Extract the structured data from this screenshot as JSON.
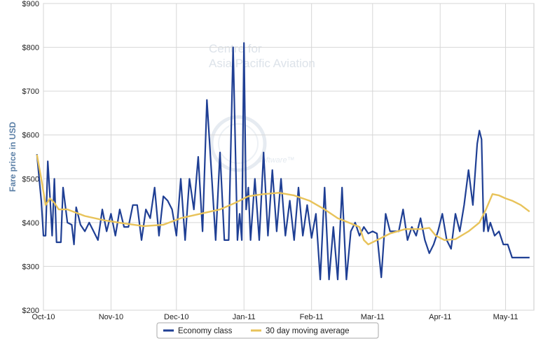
{
  "watermark": {
    "line1": "Centre for",
    "line2": "Asia Pacific Aviation",
    "badge_text": "software™"
  },
  "chart_data": {
    "type": "line",
    "title": "",
    "xlabel": "",
    "ylabel": "Fare price in USD",
    "ylim": [
      200,
      900
    ],
    "yticks": [
      200,
      300,
      400,
      500,
      600,
      700,
      800,
      900
    ],
    "ytick_labels": [
      "$200",
      "$300",
      "$400",
      "$500",
      "$600",
      "$700",
      "$800",
      "$900"
    ],
    "x_start": "2010-10-01",
    "x_end": "2011-05-14",
    "xticks": [
      {
        "date": "2010-10-01",
        "label": "Oct-10"
      },
      {
        "date": "2010-11-01",
        "label": "Nov-10"
      },
      {
        "date": "2010-12-01",
        "label": "Dec-10"
      },
      {
        "date": "2011-01-01",
        "label": "Jan-11"
      },
      {
        "date": "2011-02-01",
        "label": "Feb-11"
      },
      {
        "date": "2011-03-01",
        "label": "Mar-11"
      },
      {
        "date": "2011-04-01",
        "label": "Apr-11"
      },
      {
        "date": "2011-05-01",
        "label": "May-11"
      }
    ],
    "grid": true,
    "legend_position": "bottom",
    "series": [
      {
        "name": "Economy class",
        "color": "#1f3f94",
        "x": [
          "2010-09-28",
          "2010-09-30",
          "2010-10-01",
          "2010-10-02",
          "2010-10-03",
          "2010-10-04",
          "2010-10-05",
          "2010-10-06",
          "2010-10-07",
          "2010-10-08",
          "2010-10-09",
          "2010-10-10",
          "2010-10-12",
          "2010-10-14",
          "2010-10-15",
          "2010-10-16",
          "2010-10-18",
          "2010-10-20",
          "2010-10-22",
          "2010-10-24",
          "2010-10-26",
          "2010-10-28",
          "2010-10-30",
          "2010-11-01",
          "2010-11-03",
          "2010-11-05",
          "2010-11-07",
          "2010-11-09",
          "2010-11-11",
          "2010-11-13",
          "2010-11-15",
          "2010-11-17",
          "2010-11-19",
          "2010-11-21",
          "2010-11-23",
          "2010-11-25",
          "2010-11-27",
          "2010-11-29",
          "2010-12-01",
          "2010-12-03",
          "2010-12-05",
          "2010-12-07",
          "2010-12-09",
          "2010-12-11",
          "2010-12-13",
          "2010-12-15",
          "2010-12-17",
          "2010-12-19",
          "2010-12-21",
          "2010-12-23",
          "2010-12-25",
          "2010-12-27",
          "2010-12-29",
          "2010-12-30",
          "2010-12-31",
          "2011-01-01",
          "2011-01-02",
          "2011-01-03",
          "2011-01-04",
          "2011-01-06",
          "2011-01-08",
          "2011-01-10",
          "2011-01-12",
          "2011-01-14",
          "2011-01-16",
          "2011-01-18",
          "2011-01-20",
          "2011-01-22",
          "2011-01-24",
          "2011-01-26",
          "2011-01-28",
          "2011-01-30",
          "2011-02-01",
          "2011-02-03",
          "2011-02-05",
          "2011-02-07",
          "2011-02-09",
          "2011-02-11",
          "2011-02-13",
          "2011-02-15",
          "2011-02-17",
          "2011-02-19",
          "2011-02-21",
          "2011-02-23",
          "2011-02-25",
          "2011-02-27",
          "2011-03-01",
          "2011-03-03",
          "2011-03-05",
          "2011-03-07",
          "2011-03-09",
          "2011-03-11",
          "2011-03-13",
          "2011-03-15",
          "2011-03-17",
          "2011-03-19",
          "2011-03-21",
          "2011-03-23",
          "2011-03-25",
          "2011-03-27",
          "2011-03-29",
          "2011-03-31",
          "2011-04-02",
          "2011-04-04",
          "2011-04-06",
          "2011-04-08",
          "2011-04-10",
          "2011-04-12",
          "2011-04-14",
          "2011-04-16",
          "2011-04-18",
          "2011-04-19",
          "2011-04-20",
          "2011-04-21",
          "2011-04-22",
          "2011-04-23",
          "2011-04-24",
          "2011-04-26",
          "2011-04-28",
          "2011-04-30",
          "2011-05-02",
          "2011-05-04",
          "2011-05-06",
          "2011-05-08",
          "2011-05-10",
          "2011-05-12"
        ],
        "y": [
          556,
          450,
          370,
          370,
          540,
          460,
          370,
          500,
          355,
          355,
          355,
          480,
          400,
          395,
          350,
          435,
          395,
          380,
          400,
          380,
          360,
          430,
          380,
          420,
          370,
          430,
          390,
          390,
          440,
          440,
          360,
          430,
          410,
          480,
          370,
          460,
          450,
          430,
          370,
          500,
          360,
          500,
          430,
          550,
          380,
          680,
          520,
          360,
          560,
          360,
          360,
          800,
          360,
          420,
          360,
          810,
          430,
          480,
          360,
          500,
          360,
          560,
          370,
          520,
          380,
          500,
          370,
          450,
          360,
          480,
          370,
          440,
          365,
          420,
          270,
          480,
          270,
          390,
          270,
          480,
          270,
          380,
          400,
          370,
          390,
          375,
          380,
          375,
          275,
          420,
          380,
          380,
          380,
          430,
          360,
          390,
          370,
          410,
          360,
          330,
          350,
          380,
          420,
          360,
          340,
          420,
          380,
          440,
          520,
          440,
          580,
          610,
          590,
          380,
          420,
          380,
          400,
          370,
          380,
          350,
          350,
          320,
          320,
          320,
          320,
          320
        ]
      },
      {
        "name": "30 day moving average",
        "color": "#e8c35a",
        "x": [
          "2010-09-28",
          "2010-09-30",
          "2010-10-02",
          "2010-10-04",
          "2010-10-06",
          "2010-10-08",
          "2010-10-12",
          "2010-10-20",
          "2010-10-29",
          "2010-11-07",
          "2010-11-16",
          "2010-11-25",
          "2010-12-03",
          "2010-12-12",
          "2010-12-21",
          "2010-12-28",
          "2011-01-03",
          "2011-01-10",
          "2011-01-17",
          "2011-01-24",
          "2011-01-31",
          "2011-02-07",
          "2011-02-13",
          "2011-02-18",
          "2011-02-23",
          "2011-02-25",
          "2011-02-27",
          "2011-03-03",
          "2011-03-09",
          "2011-03-16",
          "2011-03-23",
          "2011-03-27",
          "2011-03-30",
          "2011-04-03",
          "2011-04-08",
          "2011-04-14",
          "2011-04-19",
          "2011-04-22",
          "2011-04-25",
          "2011-04-28",
          "2011-05-01",
          "2011-05-04",
          "2011-05-08",
          "2011-05-12"
        ],
        "y": [
          555,
          500,
          440,
          455,
          445,
          430,
          430,
          415,
          405,
          398,
          392,
          395,
          410,
          420,
          430,
          445,
          460,
          465,
          468,
          462,
          450,
          430,
          410,
          400,
          390,
          360,
          350,
          360,
          375,
          385,
          385,
          388,
          370,
          360,
          362,
          380,
          400,
          430,
          465,
          462,
          455,
          450,
          440,
          425
        ]
      }
    ]
  }
}
